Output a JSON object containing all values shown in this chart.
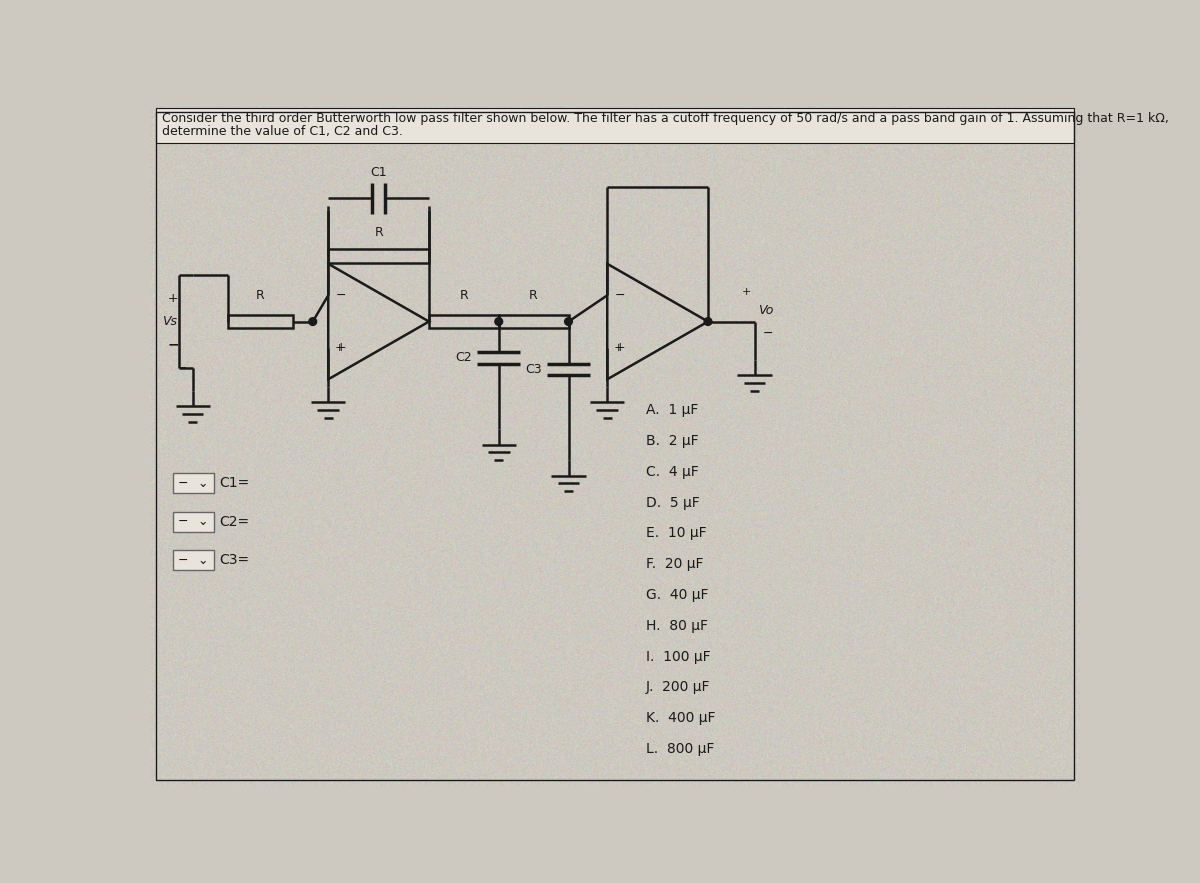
{
  "title_line1": "Consider the third order Butterworth low pass filter shown below. The filter has a cutoff frequency of 50 rad/s and a pass band gain of 1. Assuming that R=1 kΩ,",
  "title_line2": "determine the value of C1, C2 and C3.",
  "bg_color": "#cdc9c0",
  "line_color": "#1a1a1a",
  "text_color": "#1a1a1a",
  "choices": [
    "A.  1 µF",
    "B.  2 µF",
    "C.  4 µF",
    "D.  5 µF",
    "E.  10 µF",
    "F.  20 µF",
    "G.  40 µF",
    "H.  80 µF",
    "I.  100 µF",
    "J.  200 µF",
    "K.  400 µF",
    "L.  800 µF"
  ],
  "dropdowns": [
    "C1=",
    "C2=",
    "C3="
  ],
  "font_size_title": 9.0,
  "font_size_choices": 10,
  "font_size_labels": 9,
  "font_size_small": 8
}
